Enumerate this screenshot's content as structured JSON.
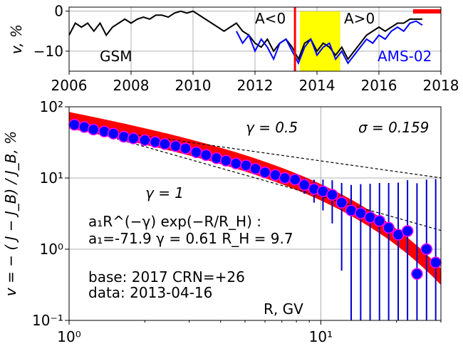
{
  "chart_data": [
    {
      "type": "line",
      "ylabel": "v, %",
      "xlim": [
        2006,
        2018
      ],
      "ylim": [
        -15,
        1
      ],
      "x_ticks": [
        "2006",
        "2008",
        "2010",
        "2012",
        "2014",
        "2016",
        "2018"
      ],
      "y_ticks": [
        "0",
        "−10"
      ],
      "grid": true,
      "annotations": {
        "left_label": "GSM",
        "polarity_neg": "A<0",
        "polarity_pos": "A>0",
        "series_label": "AMS-02"
      },
      "colors": {
        "gsm": "#000000",
        "ams": "#0000ff",
        "marker": "#ff0000",
        "band": "#ffff00",
        "bar": "#ff0000"
      },
      "marker_year": 2013.29,
      "polarity_band": [
        2013.45,
        2014.75
      ],
      "reference_bar": [
        2017.1,
        2018
      ],
      "series": [
        {
          "name": "GSM",
          "x": [
            2006.0,
            2006.2,
            2006.4,
            2006.6,
            2006.8,
            2007.0,
            2007.2,
            2007.4,
            2007.6,
            2007.8,
            2008.0,
            2008.2,
            2008.4,
            2008.6,
            2008.8,
            2009.0,
            2009.2,
            2009.4,
            2009.6,
            2009.8,
            2010.0,
            2010.2,
            2010.4,
            2010.6,
            2010.8,
            2011.0,
            2011.2,
            2011.4,
            2011.6,
            2011.8,
            2012.0,
            2012.2,
            2012.4,
            2012.6,
            2012.8,
            2013.0,
            2013.2,
            2013.4,
            2013.6,
            2013.8,
            2014.0,
            2014.2,
            2014.4,
            2014.6,
            2014.8,
            2015.0,
            2015.2,
            2015.4,
            2015.6,
            2015.8,
            2016.0,
            2016.2,
            2016.4,
            2016.6,
            2016.8,
            2017.0,
            2017.2,
            2017.4
          ],
          "values": [
            -6,
            -3,
            -4,
            -3,
            -5,
            -3,
            -6,
            -4,
            -3,
            -2,
            -3,
            -2,
            -1.5,
            -2,
            -1,
            -1,
            -1.5,
            -0.5,
            0,
            -0.5,
            0,
            -1,
            -2,
            -3,
            -4,
            -5,
            -4,
            -3,
            -5,
            -6,
            -8,
            -9,
            -7,
            -10,
            -8,
            -7,
            -9,
            -12,
            -8,
            -7,
            -10,
            -8,
            -9,
            -11,
            -9,
            -12,
            -10,
            -8,
            -6,
            -5,
            -4,
            -5,
            -4,
            -3,
            -3,
            -2,
            -2,
            -2
          ]
        },
        {
          "name": "AMS-02",
          "x": [
            2011.4,
            2011.6,
            2011.8,
            2012.0,
            2012.2,
            2012.4,
            2012.6,
            2012.8,
            2013.0,
            2013.2,
            2013.4,
            2013.6,
            2013.8,
            2014.0,
            2014.2,
            2014.4,
            2014.6,
            2014.8,
            2015.0,
            2015.2,
            2015.4,
            2015.6,
            2015.8,
            2016.0,
            2016.2,
            2016.4,
            2016.6,
            2016.8,
            2017.0,
            2017.2,
            2017.4
          ],
          "values": [
            -5,
            -8,
            -6,
            -10,
            -7,
            -9,
            -12,
            -8,
            -7,
            -10,
            -13,
            -9,
            -7,
            -11,
            -9,
            -8,
            -12,
            -10,
            -13,
            -11,
            -9,
            -7,
            -8,
            -6,
            -7,
            -5,
            -4,
            -5,
            -3,
            -2.5,
            -3.5
          ]
        }
      ]
    },
    {
      "type": "scatter",
      "xlabel": "R, GV",
      "xlim": [
        1,
        30
      ],
      "ylim": [
        0.1,
        100
      ],
      "log_x": true,
      "log_y": true,
      "grid": true,
      "x_ticks": [
        "10⁰",
        "10¹"
      ],
      "y_ticks": [
        "10⁻¹",
        "10⁰",
        "10¹",
        "10²"
      ],
      "ylabel_text": "v = − ( J − J_B) / J_B, %",
      "annotations": {
        "gamma_half": "γ = 0.5",
        "sigma": "σ = 0.159",
        "gamma_one": "γ = 1",
        "formula": "a₁R^(−γ) exp(−R/R_H) :",
        "params": "a₁=-71.9  γ = 0.61  R_H =  9.7",
        "base": "base: 2017   CRN=+26",
        "data_date": "data: 2013-04-16"
      },
      "fit": {
        "a1": -71.9,
        "gamma": 0.61,
        "RH": 9.7,
        "sigma": 0.159
      },
      "reference_lines": [
        {
          "gamma": 0.5,
          "y_at_1": 55
        },
        {
          "gamma": 1,
          "y_at_1": 55
        }
      ],
      "colors": {
        "band": "#ff0000",
        "marker_fill": "#0000ff",
        "marker_edge": "#ff00ff",
        "error_bar": "#0000cc"
      },
      "points": [
        {
          "x": 1.05,
          "y": 56,
          "err": 0
        },
        {
          "x": 1.15,
          "y": 52,
          "err": 0
        },
        {
          "x": 1.25,
          "y": 48,
          "err": 0
        },
        {
          "x": 1.38,
          "y": 45,
          "err": 0
        },
        {
          "x": 1.5,
          "y": 42,
          "err": 0
        },
        {
          "x": 1.65,
          "y": 38,
          "err": 0
        },
        {
          "x": 1.8,
          "y": 36,
          "err": 0
        },
        {
          "x": 2.0,
          "y": 34,
          "err": 0
        },
        {
          "x": 2.2,
          "y": 32,
          "err": 0
        },
        {
          "x": 2.4,
          "y": 30,
          "err": 0
        },
        {
          "x": 2.65,
          "y": 28,
          "err": 0
        },
        {
          "x": 2.9,
          "y": 26,
          "err": 0
        },
        {
          "x": 3.2,
          "y": 23,
          "err": 0
        },
        {
          "x": 3.5,
          "y": 21,
          "err": 0
        },
        {
          "x": 3.85,
          "y": 19,
          "err": 0
        },
        {
          "x": 4.2,
          "y": 17.5,
          "err": 0
        },
        {
          "x": 4.6,
          "y": 16,
          "err": 0
        },
        {
          "x": 5.05,
          "y": 15,
          "err": 0
        },
        {
          "x": 5.5,
          "y": 13.5,
          "err": 0
        },
        {
          "x": 6.0,
          "y": 12,
          "err": 0
        },
        {
          "x": 6.6,
          "y": 11,
          "err": 0
        },
        {
          "x": 7.2,
          "y": 10,
          "err": 0
        },
        {
          "x": 7.9,
          "y": 9.5,
          "err": 1.5
        },
        {
          "x": 8.6,
          "y": 8,
          "err": 2
        },
        {
          "x": 9.4,
          "y": 7,
          "err": 2.5
        },
        {
          "x": 10.2,
          "y": 6.5,
          "err": 3
        },
        {
          "x": 11.1,
          "y": 5.8,
          "err": 3.5
        },
        {
          "x": 12.1,
          "y": 4.5,
          "err": 4
        },
        {
          "x": 13.2,
          "y": 3.5,
          "err": 4.5
        },
        {
          "x": 14.4,
          "y": 3.2,
          "err": 5
        },
        {
          "x": 15.7,
          "y": 2.8,
          "err": 5.5
        },
        {
          "x": 17.1,
          "y": 2.5,
          "err": 6
        },
        {
          "x": 18.6,
          "y": 2.0,
          "err": 6.5
        },
        {
          "x": 20.3,
          "y": 1.6,
          "err": 7
        },
        {
          "x": 22.1,
          "y": 1.8,
          "err": 7.5
        },
        {
          "x": 24.1,
          "y": 0.45,
          "err": 8
        },
        {
          "x": 26.3,
          "y": 1.0,
          "err": 8.5
        },
        {
          "x": 28.6,
          "y": 0.65,
          "err": 9
        }
      ]
    }
  ]
}
